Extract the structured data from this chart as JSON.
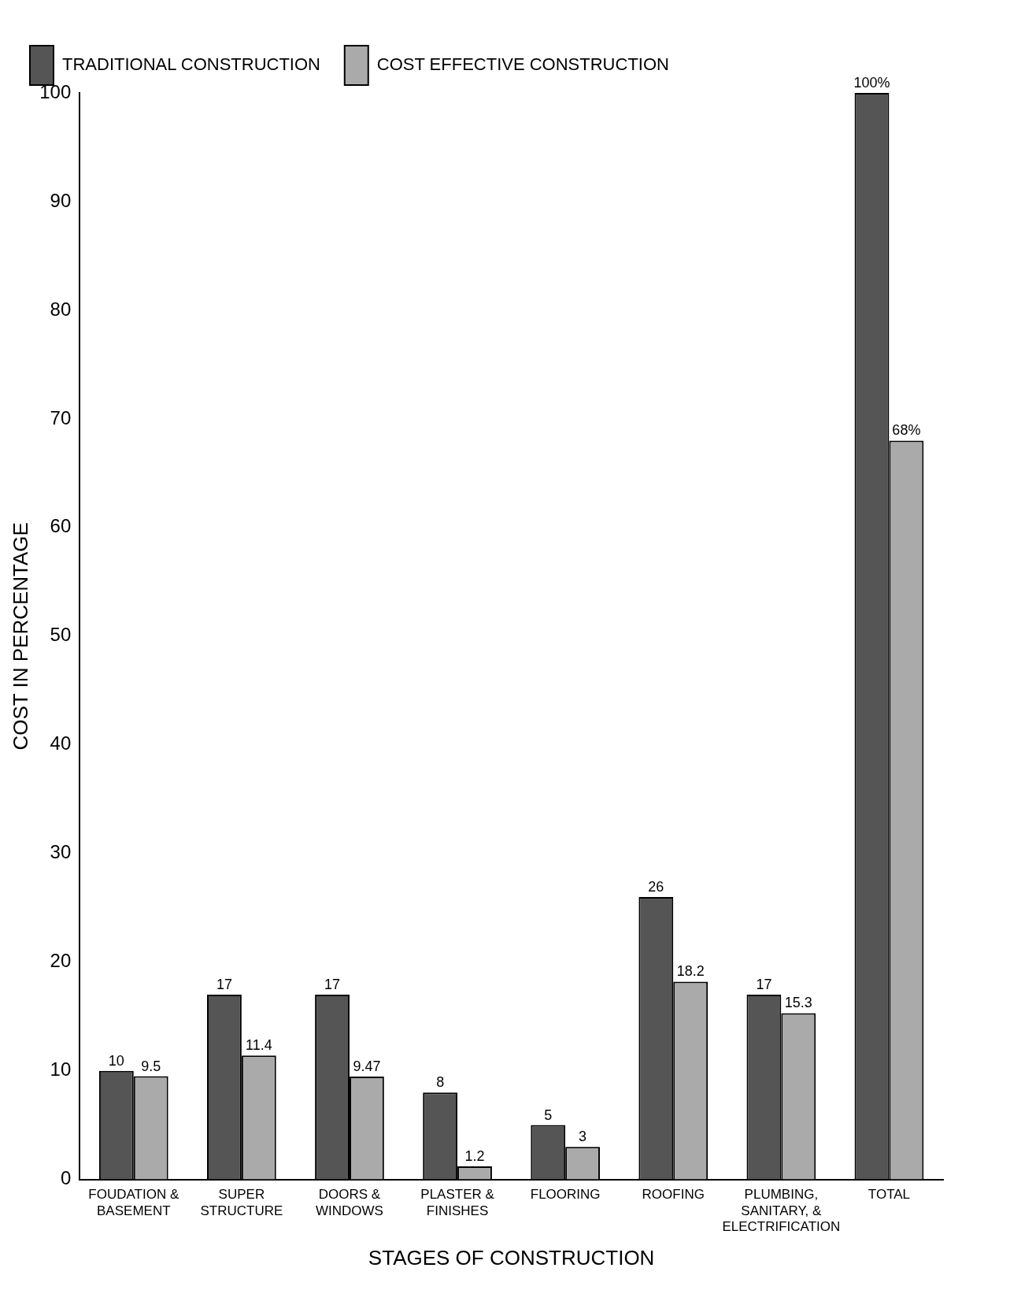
{
  "chart_data": {
    "type": "bar",
    "xlabel": "STAGES OF CONSTRUCTION",
    "ylabel": "COST IN PERCENTAGE",
    "categories": [
      "FOUDATION & BASEMENT",
      "SUPER STRUCTURE",
      "DOORS & WINDOWS",
      "PLASTER & FINISHES",
      "FLOORING",
      "ROOFING",
      "PLUMBING, SANITARY, & ELECTRIFICATION",
      "TOTAL"
    ],
    "series": [
      {
        "name": "TRADITIONAL CONSTRUCTION",
        "color": "#555555",
        "values": [
          10,
          17,
          17,
          8,
          5,
          26,
          17,
          100
        ],
        "value_labels": [
          "10",
          "17",
          "17",
          "8",
          "5",
          "26",
          "17",
          "100%"
        ]
      },
      {
        "name": "COST EFFECTIVE CONSTRUCTION",
        "color": "#aaaaaa",
        "values": [
          9.5,
          11.4,
          9.47,
          1.2,
          3,
          18.2,
          15.3,
          68
        ],
        "value_labels": [
          "9.5",
          "11.4",
          "9.47",
          "1.2",
          "3",
          "18.2",
          "15.3",
          "68%"
        ]
      }
    ],
    "ylim": [
      0,
      100
    ],
    "yticks": [
      0,
      10,
      20,
      30,
      40,
      50,
      60,
      70,
      80,
      90,
      100
    ],
    "grid": false,
    "legend": "top left"
  }
}
